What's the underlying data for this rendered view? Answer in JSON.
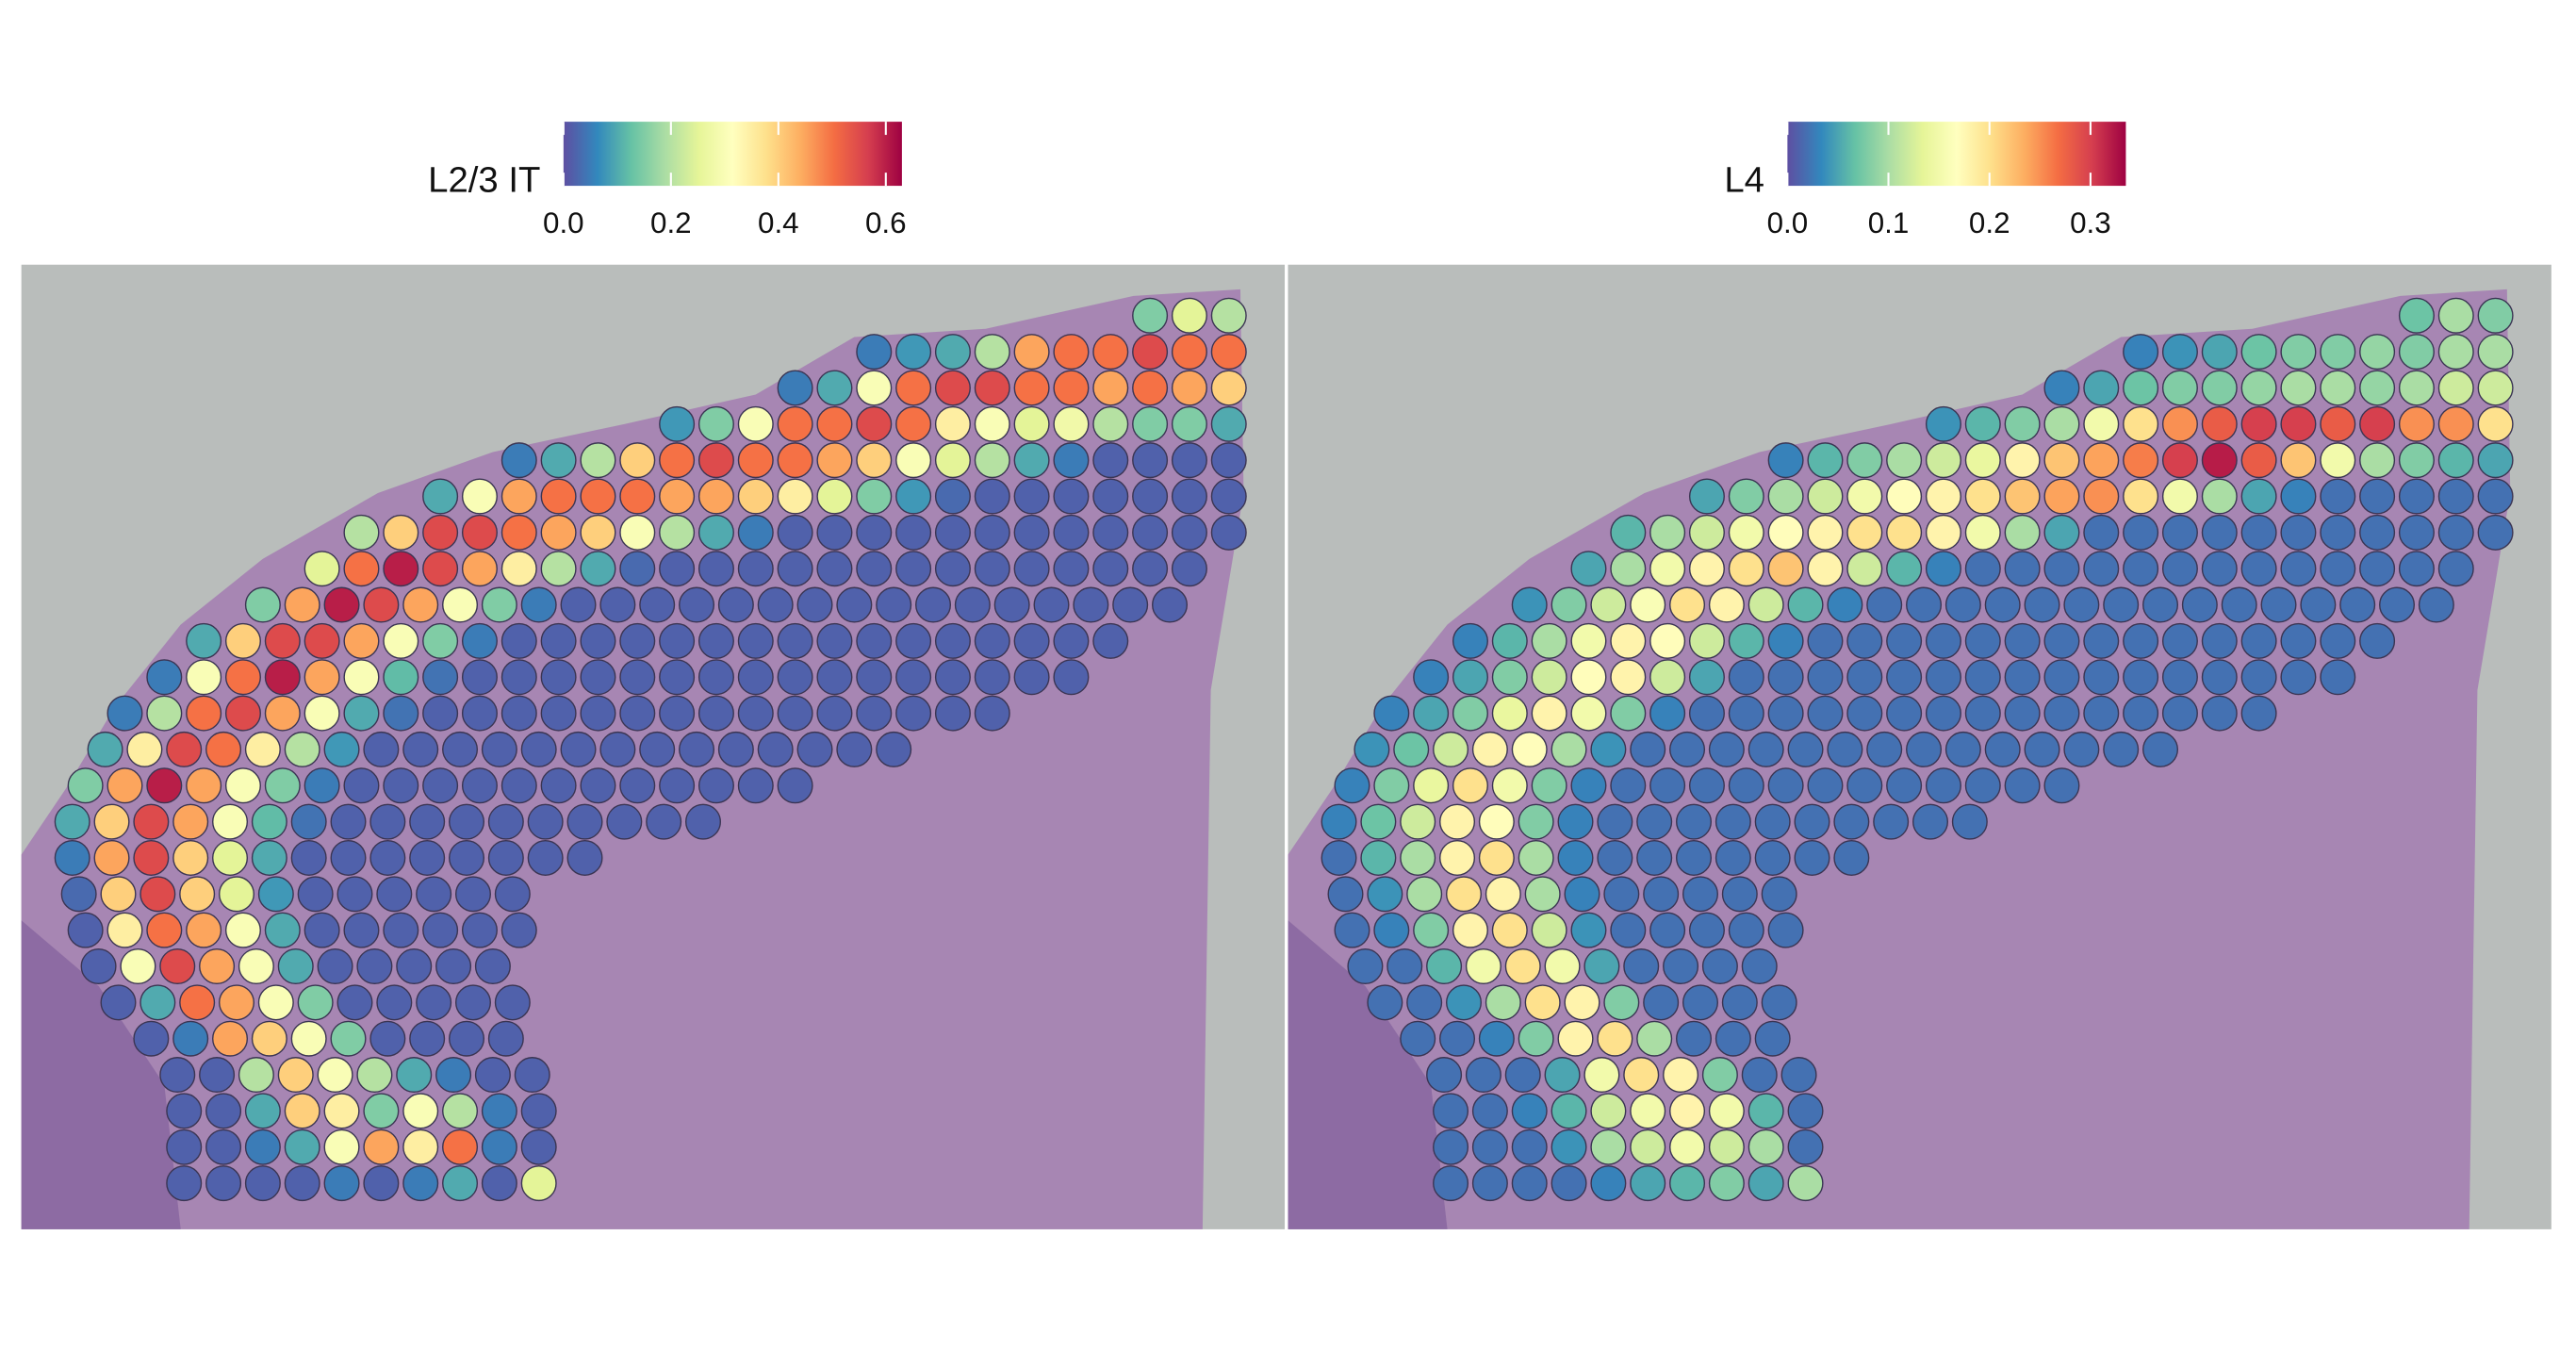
{
  "chart_data": [
    {
      "type": "spatial",
      "title": "L2/3 IT",
      "clim": [
        0,
        0.63
      ],
      "ticks": [
        {
          "value": 0,
          "label": "0.0"
        },
        0.2,
        0.4,
        0.6
      ],
      "colormap": [
        "#5e4fa2",
        "#3288bd",
        "#66c2a5",
        "#abdda4",
        "#e6f598",
        "#ffffbf",
        "#fee08b",
        "#fdae61",
        "#f46d43",
        "#d53e4f",
        "#9e0142"
      ],
      "values": [
        [
          0.15,
          0.25,
          0.2
        ],
        [
          0.05,
          0.08,
          0.1,
          0.2,
          0.45,
          0.5,
          0.5,
          0.55,
          0.5,
          0.5
        ],
        [
          0.05,
          0.1,
          0.3,
          0.5,
          0.55,
          0.55,
          0.5,
          0.5,
          0.45,
          0.5,
          0.45,
          0.4
        ],
        [
          0.08,
          0.15,
          0.3,
          0.5,
          0.5,
          0.55,
          0.5,
          0.35,
          0.3,
          0.25,
          0.28,
          0.2,
          0.15,
          0.15,
          0.1
        ],
        [
          0.05,
          0.1,
          0.2,
          0.4,
          0.5,
          0.55,
          0.5,
          0.5,
          0.45,
          0.4,
          0.3,
          0.25,
          0.2,
          0.1,
          0.05,
          0.02,
          0.02,
          0.02,
          0.02
        ],
        [
          0.1,
          0.3,
          0.45,
          0.5,
          0.5,
          0.5,
          0.45,
          0.45,
          0.4,
          0.35,
          0.25,
          0.15,
          0.08,
          0.03,
          0.02,
          0.02,
          0.02,
          0.02,
          0.02,
          0.02,
          0.02
        ],
        [
          0.2,
          0.4,
          0.55,
          0.55,
          0.5,
          0.45,
          0.4,
          0.3,
          0.2,
          0.1,
          0.05,
          0.02,
          0.02,
          0.02,
          0.02,
          0.02,
          0.02,
          0.02,
          0.02,
          0.02,
          0.02,
          0.02,
          0.02
        ],
        [
          0.25,
          0.5,
          0.6,
          0.55,
          0.45,
          0.35,
          0.2,
          0.1,
          0.03,
          0.02,
          0.02,
          0.02,
          0.02,
          0.02,
          0.02,
          0.02,
          0.02,
          0.02,
          0.02,
          0.02,
          0.02,
          0.02,
          0.02
        ],
        [
          0.15,
          0.45,
          0.6,
          0.55,
          0.45,
          0.3,
          0.15,
          0.05,
          0.02,
          0.02,
          0.02,
          0.02,
          0.02,
          0.02,
          0.02,
          0.02,
          0.02,
          0.02,
          0.02,
          0.02,
          0.02,
          0.02,
          0.02,
          0.02
        ],
        [
          0.1,
          0.4,
          0.55,
          0.55,
          0.45,
          0.3,
          0.15,
          0.05,
          0.02,
          0.02,
          0.02,
          0.02,
          0.02,
          0.02,
          0.02,
          0.02,
          0.02,
          0.02,
          0.02,
          0.02,
          0.02,
          0.02,
          0.02,
          0.02
        ],
        [
          0.05,
          0.3,
          0.5,
          0.6,
          0.45,
          0.3,
          0.12,
          0.04,
          0.02,
          0.02,
          0.02,
          0.02,
          0.02,
          0.02,
          0.02,
          0.02,
          0.02,
          0.02,
          0.02,
          0.02,
          0.02,
          0.02,
          0.02,
          0.02
        ],
        [
          0.05,
          0.2,
          0.5,
          0.55,
          0.45,
          0.3,
          0.1,
          0.04,
          0.02,
          0.02,
          0.02,
          0.02,
          0.02,
          0.02,
          0.02,
          0.02,
          0.02,
          0.02,
          0.02,
          0.02,
          0.02,
          0.02,
          0.02
        ],
        [
          0.1,
          0.35,
          0.55,
          0.5,
          0.35,
          0.2,
          0.08,
          0.02,
          0.02,
          0.02,
          0.02,
          0.02,
          0.02,
          0.02,
          0.02,
          0.02,
          0.02,
          0.02,
          0.02,
          0.02,
          0.02
        ],
        [
          0.15,
          0.45,
          0.6,
          0.45,
          0.3,
          0.15,
          0.05,
          0.02,
          0.02,
          0.02,
          0.02,
          0.02,
          0.02,
          0.02,
          0.02,
          0.02,
          0.02,
          0.02,
          0.02
        ],
        [
          0.1,
          0.4,
          0.55,
          0.45,
          0.3,
          0.12,
          0.04,
          0.02,
          0.02,
          0.02,
          0.02,
          0.02,
          0.02,
          0.02,
          0.02,
          0.02,
          0.02
        ],
        [
          0.05,
          0.45,
          0.55,
          0.4,
          0.25,
          0.1,
          0.02,
          0.02,
          0.02,
          0.02,
          0.02,
          0.02,
          0.02,
          0.02
        ],
        [
          0.03,
          0.4,
          0.55,
          0.4,
          0.25,
          0.08,
          0.02,
          0.02,
          0.02,
          0.02,
          0.02,
          0.02
        ],
        [
          0.02,
          0.35,
          0.5,
          0.45,
          0.3,
          0.1,
          0.02,
          0.02,
          0.02,
          0.02,
          0.02,
          0.02
        ],
        [
          0.02,
          0.3,
          0.55,
          0.45,
          0.3,
          0.1,
          0.02,
          0.02,
          0.02,
          0.02,
          0.02
        ],
        [
          0.02,
          0.1,
          0.5,
          0.45,
          0.3,
          0.15,
          0.02,
          0.02,
          0.02,
          0.02,
          0.02
        ],
        [
          0.02,
          0.05,
          0.45,
          0.4,
          0.3,
          0.15,
          0.02,
          0.02,
          0.02,
          0.02
        ],
        [
          0.02,
          0.02,
          0.2,
          0.4,
          0.3,
          0.2,
          0.1,
          0.05,
          0.02,
          0.02
        ],
        [
          0.02,
          0.02,
          0.1,
          0.4,
          0.35,
          0.15,
          0.3,
          0.2,
          0.05,
          0.02
        ],
        [
          0.02,
          0.02,
          0.05,
          0.1,
          0.3,
          0.45,
          0.35,
          0.5,
          0.05,
          0.02
        ],
        [
          0.02,
          0.02,
          0.02,
          0.02,
          0.05,
          0.02,
          0.05,
          0.1,
          0.02,
          0.25
        ]
      ]
    },
    {
      "type": "spatial",
      "title": "L4",
      "clim": [
        0,
        0.335
      ],
      "ticks": [
        {
          "value": 0,
          "label": "0.0"
        },
        0.1,
        0.2,
        0.3
      ],
      "colormap": [
        "#5e4fa2",
        "#3288bd",
        "#66c2a5",
        "#abdda4",
        "#e6f598",
        "#ffffbf",
        "#fee08b",
        "#fdae61",
        "#f46d43",
        "#d53e4f",
        "#9e0142"
      ],
      "values": [
        [
          0.07,
          0.1,
          0.08
        ],
        [
          0.03,
          0.04,
          0.05,
          0.07,
          0.08,
          0.08,
          0.09,
          0.08,
          0.1,
          0.1
        ],
        [
          0.03,
          0.05,
          0.07,
          0.08,
          0.08,
          0.09,
          0.1,
          0.1,
          0.09,
          0.1,
          0.12,
          0.12
        ],
        [
          0.04,
          0.06,
          0.08,
          0.1,
          0.15,
          0.2,
          0.25,
          0.28,
          0.3,
          0.3,
          0.28,
          0.3,
          0.25,
          0.25,
          0.2
        ],
        [
          0.03,
          0.06,
          0.08,
          0.1,
          0.12,
          0.14,
          0.18,
          0.22,
          0.24,
          0.26,
          0.3,
          0.32,
          0.28,
          0.22,
          0.15,
          0.1,
          0.08,
          0.06,
          0.05
        ],
        [
          0.05,
          0.08,
          0.1,
          0.12,
          0.15,
          0.17,
          0.18,
          0.2,
          0.22,
          0.24,
          0.25,
          0.2,
          0.15,
          0.1,
          0.05,
          0.03,
          0.02,
          0.02,
          0.02,
          0.02,
          0.02
        ],
        [
          0.06,
          0.1,
          0.12,
          0.15,
          0.17,
          0.18,
          0.2,
          0.2,
          0.18,
          0.15,
          0.1,
          0.05,
          0.02,
          0.02,
          0.02,
          0.02,
          0.02,
          0.02,
          0.02,
          0.02,
          0.02,
          0.02,
          0.02
        ],
        [
          0.05,
          0.1,
          0.15,
          0.18,
          0.2,
          0.22,
          0.18,
          0.12,
          0.06,
          0.03,
          0.02,
          0.02,
          0.02,
          0.02,
          0.02,
          0.02,
          0.02,
          0.02,
          0.02,
          0.02,
          0.02,
          0.02,
          0.02
        ],
        [
          0.04,
          0.08,
          0.12,
          0.16,
          0.2,
          0.18,
          0.12,
          0.06,
          0.03,
          0.02,
          0.02,
          0.02,
          0.02,
          0.02,
          0.02,
          0.02,
          0.02,
          0.02,
          0.02,
          0.02,
          0.02,
          0.02,
          0.02,
          0.02
        ],
        [
          0.03,
          0.06,
          0.1,
          0.15,
          0.18,
          0.17,
          0.12,
          0.06,
          0.03,
          0.02,
          0.02,
          0.02,
          0.02,
          0.02,
          0.02,
          0.02,
          0.02,
          0.02,
          0.02,
          0.02,
          0.02,
          0.02,
          0.02,
          0.02
        ],
        [
          0.03,
          0.05,
          0.08,
          0.12,
          0.17,
          0.18,
          0.12,
          0.05,
          0.02,
          0.02,
          0.02,
          0.02,
          0.02,
          0.02,
          0.02,
          0.02,
          0.02,
          0.02,
          0.02,
          0.02,
          0.02,
          0.02,
          0.02,
          0.02
        ],
        [
          0.03,
          0.05,
          0.08,
          0.14,
          0.18,
          0.15,
          0.08,
          0.03,
          0.02,
          0.02,
          0.02,
          0.02,
          0.02,
          0.02,
          0.02,
          0.02,
          0.02,
          0.02,
          0.02,
          0.02,
          0.02,
          0.02,
          0.02
        ],
        [
          0.04,
          0.07,
          0.12,
          0.18,
          0.17,
          0.1,
          0.04,
          0.02,
          0.02,
          0.02,
          0.02,
          0.02,
          0.02,
          0.02,
          0.02,
          0.02,
          0.02,
          0.02,
          0.02,
          0.02,
          0.02
        ],
        [
          0.03,
          0.08,
          0.14,
          0.2,
          0.15,
          0.08,
          0.03,
          0.02,
          0.02,
          0.02,
          0.02,
          0.02,
          0.02,
          0.02,
          0.02,
          0.02,
          0.02,
          0.02,
          0.02
        ],
        [
          0.03,
          0.07,
          0.12,
          0.18,
          0.17,
          0.08,
          0.03,
          0.02,
          0.02,
          0.02,
          0.02,
          0.02,
          0.02,
          0.02,
          0.02,
          0.02,
          0.02
        ],
        [
          0.02,
          0.06,
          0.1,
          0.18,
          0.2,
          0.1,
          0.03,
          0.02,
          0.02,
          0.02,
          0.02,
          0.02,
          0.02,
          0.02
        ],
        [
          0.02,
          0.04,
          0.1,
          0.2,
          0.18,
          0.1,
          0.03,
          0.02,
          0.02,
          0.02,
          0.02,
          0.02
        ],
        [
          0.02,
          0.03,
          0.08,
          0.18,
          0.2,
          0.12,
          0.04,
          0.02,
          0.02,
          0.02,
          0.02,
          0.02
        ],
        [
          0.02,
          0.02,
          0.06,
          0.15,
          0.2,
          0.15,
          0.05,
          0.02,
          0.02,
          0.02,
          0.02
        ],
        [
          0.02,
          0.02,
          0.04,
          0.1,
          0.2,
          0.18,
          0.08,
          0.02,
          0.02,
          0.02,
          0.02
        ],
        [
          0.02,
          0.02,
          0.03,
          0.08,
          0.18,
          0.2,
          0.1,
          0.02,
          0.02,
          0.02
        ],
        [
          0.02,
          0.02,
          0.02,
          0.05,
          0.15,
          0.2,
          0.18,
          0.08,
          0.02,
          0.02
        ],
        [
          0.02,
          0.02,
          0.03,
          0.06,
          0.12,
          0.15,
          0.18,
          0.15,
          0.06,
          0.02
        ],
        [
          0.02,
          0.02,
          0.02,
          0.04,
          0.1,
          0.12,
          0.15,
          0.12,
          0.1,
          0.02
        ],
        [
          0.02,
          0.02,
          0.02,
          0.02,
          0.03,
          0.05,
          0.06,
          0.08,
          0.05,
          0.1
        ]
      ]
    }
  ]
}
